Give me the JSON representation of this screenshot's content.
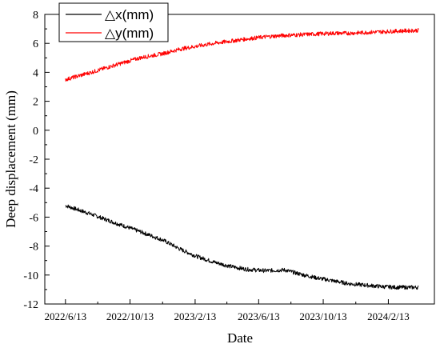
{
  "chart_data": {
    "type": "line",
    "xlabel": "Date",
    "ylabel": "Deep displacement (mm)",
    "ylim": [
      -12,
      8
    ],
    "yticks": [
      8,
      6,
      4,
      2,
      0,
      -2,
      -4,
      -6,
      -8,
      -10,
      -12
    ],
    "x_tick_labels": [
      "2022/6/13",
      "2022/10/13",
      "2023/2/13",
      "2023/6/13",
      "2023/10/13",
      "2024/2/13"
    ],
    "xlim": [
      "2022/5/5",
      "2024/5/10"
    ],
    "x_range_of_data": [
      "2022/6/13",
      "2024/4/10"
    ],
    "grid": false,
    "legend_position": "top-left",
    "series": [
      {
        "name": "△x(mm)",
        "color": "#000000",
        "x": [
          "2022/6/13",
          "2022/8/1",
          "2022/9/15",
          "2022/11/1",
          "2022/12/15",
          "2023/1/15",
          "2023/2/15",
          "2023/3/20",
          "2023/4/20",
          "2023/5/20",
          "2023/6/25",
          "2023/8/1",
          "2023/9/1",
          "2023/10/1",
          "2023/11/1",
          "2023/12/1",
          "2024/1/1",
          "2024/2/1",
          "2024/3/1",
          "2024/4/10"
        ],
        "values": [
          -5.2,
          -5.8,
          -6.4,
          -7.0,
          -7.6,
          -8.2,
          -8.7,
          -9.1,
          -9.4,
          -9.6,
          -9.7,
          -9.65,
          -9.95,
          -10.2,
          -10.4,
          -10.6,
          -10.7,
          -10.8,
          -10.85,
          -10.85
        ]
      },
      {
        "name": "△y(mm)",
        "color": "#ff0000",
        "x": [
          "2022/6/13",
          "2022/8/1",
          "2022/9/15",
          "2022/11/1",
          "2022/12/15",
          "2023/1/15",
          "2023/2/15",
          "2023/3/20",
          "2023/4/20",
          "2023/5/20",
          "2023/6/25",
          "2023/8/1",
          "2023/9/1",
          "2023/10/1",
          "2023/11/1",
          "2023/12/1",
          "2024/1/1",
          "2024/2/1",
          "2024/3/1",
          "2024/4/10"
        ],
        "values": [
          3.5,
          4.0,
          4.5,
          5.0,
          5.3,
          5.6,
          5.8,
          6.0,
          6.15,
          6.3,
          6.45,
          6.55,
          6.6,
          6.65,
          6.7,
          6.7,
          6.75,
          6.8,
          6.85,
          6.9
        ]
      }
    ]
  }
}
